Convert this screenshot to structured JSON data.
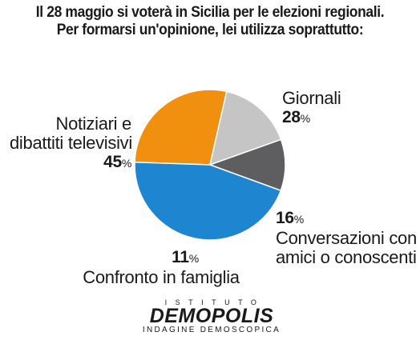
{
  "title_line1": "Il 28 maggio si voterà in Sicilia per le elezioni regionali.",
  "title_line2": "Per formarsi un'opinione, lei utilizza soprattutto:",
  "chart_data": {
    "type": "pie",
    "title": "Il 28 maggio si voterà in Sicilia per le elezioni regionali. Per formarsi un'opinione, lei utilizza soprattutto:",
    "slices": [
      {
        "label": "Giornali",
        "value": 28,
        "color": "#F0900E"
      },
      {
        "label": "Conversazioni con amici o conoscenti",
        "value": 16,
        "color": "#C5C5C5"
      },
      {
        "label": "Confronto in famiglia",
        "value": 11,
        "color": "#5E5E60"
      },
      {
        "label": "Notiziari e dibattiti televisivi",
        "value": 45,
        "color": "#1E86D0"
      }
    ],
    "unit": "%"
  },
  "labels": {
    "giornali": {
      "name": "Giornali",
      "value": "28",
      "unit": "%"
    },
    "conversazioni": {
      "name_line1": "Conversazioni con",
      "name_line2": "amici o conoscenti",
      "value": "16",
      "unit": "%"
    },
    "famiglia": {
      "name": "Confronto in famiglia",
      "value": "11",
      "unit": "%"
    },
    "notiziari": {
      "name_line1": "Notiziari e",
      "name_line2": "dibattiti televisivi",
      "value": "45",
      "unit": "%"
    }
  },
  "logo": {
    "top": "ISTITUTO",
    "main": "DEMOPOLIS",
    "sub": "INDAGINE DEMOSCOPICA"
  }
}
